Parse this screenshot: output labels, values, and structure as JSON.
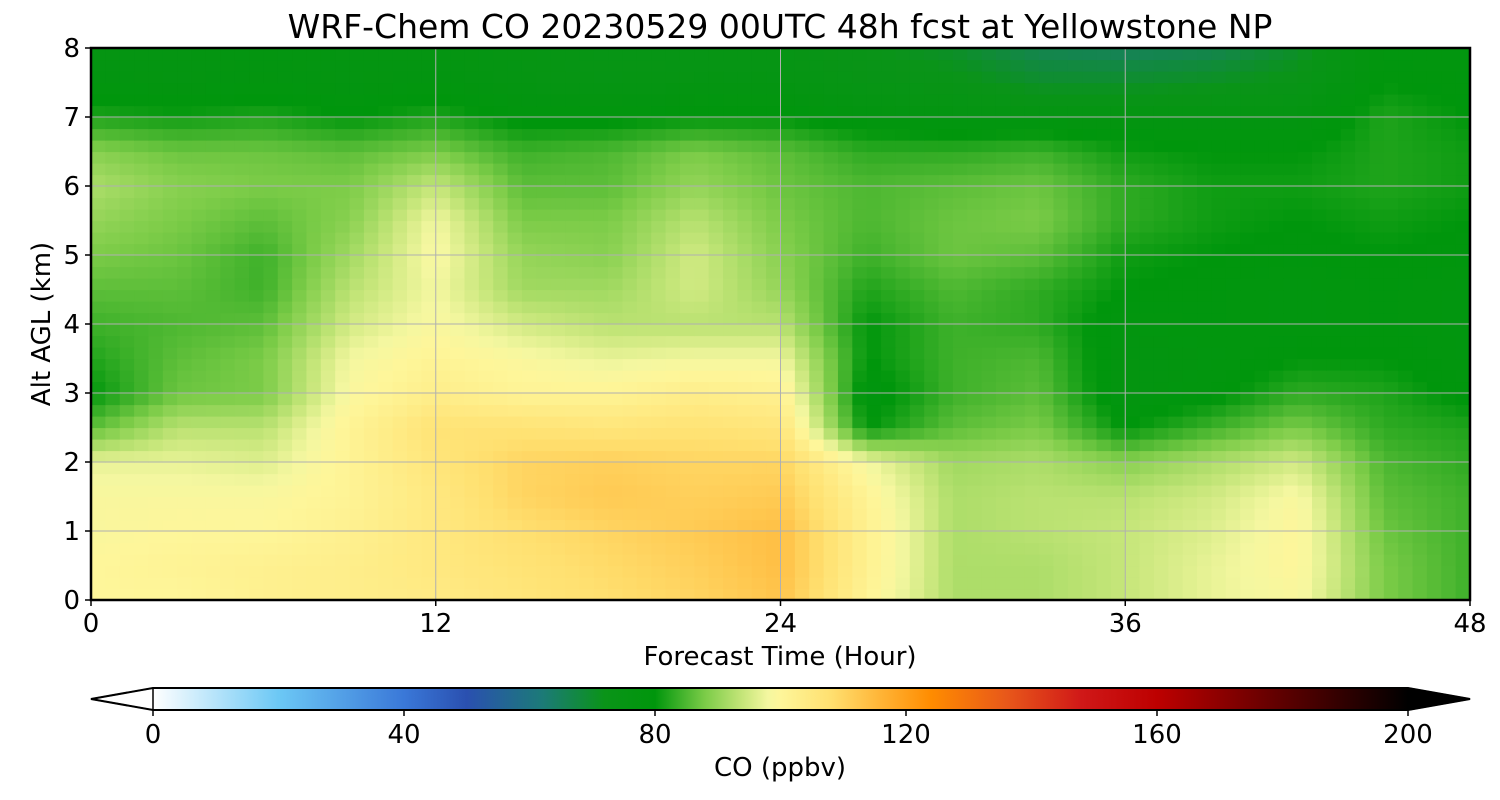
{
  "chart_data": {
    "type": "heatmap",
    "title": "WRF-Chem CO  20230529 00UTC 48h fcst at Yellowstone NP",
    "xlabel": "Forecast Time (Hour)",
    "ylabel": "Alt AGL (km)",
    "xlim": [
      0,
      48
    ],
    "ylim": [
      0,
      8
    ],
    "x_ticks": [
      0,
      12,
      24,
      36,
      48
    ],
    "x_tick_labels": [
      "0",
      "12",
      "24",
      "36",
      "48"
    ],
    "y_ticks": [
      0,
      1,
      2,
      3,
      4,
      5,
      6,
      7,
      8
    ],
    "y_tick_labels": [
      "0",
      "1",
      "2",
      "3",
      "4",
      "5",
      "6",
      "7",
      "8"
    ],
    "grid": true,
    "x": [
      0,
      3,
      6,
      9,
      12,
      15,
      18,
      21,
      24,
      27,
      30,
      33,
      36,
      39,
      42,
      45,
      48
    ],
    "y": [
      0,
      0.5,
      1,
      1.5,
      2,
      2.5,
      3,
      3.5,
      4,
      4.5,
      5,
      5.5,
      6,
      6.5,
      7,
      7.5,
      8
    ],
    "z_units": "ppbv",
    "z": [
      [
        100,
        100,
        102,
        103,
        104,
        106,
        108,
        110,
        113,
        101,
        92,
        92,
        94,
        97,
        99,
        88,
        84
      ],
      [
        100,
        101,
        102,
        103,
        105,
        107,
        109,
        111,
        114,
        102,
        92,
        92,
        94,
        97,
        100,
        88,
        84
      ],
      [
        99,
        100,
        100,
        102,
        105,
        108,
        110,
        112,
        114,
        102,
        92,
        93,
        94,
        96,
        100,
        87,
        84
      ],
      [
        99,
        99,
        99,
        101,
        105,
        110,
        112,
        111,
        112,
        101,
        92,
        93,
        93,
        95,
        99,
        86,
        84
      ],
      [
        97,
        97,
        96,
        101,
        106,
        110,
        111,
        110,
        110,
        98,
        91,
        92,
        89,
        92,
        95,
        85,
        83
      ],
      [
        86,
        93,
        93,
        101,
        107,
        107,
        106,
        107,
        106,
        80,
        86,
        88,
        80,
        84,
        88,
        83,
        82
      ],
      [
        80,
        87,
        88,
        99,
        103,
        101,
        101,
        103,
        102,
        78,
        84,
        86,
        77,
        79,
        83,
        82,
        79
      ],
      [
        82,
        86,
        88,
        98,
        101,
        99,
        97,
        98,
        98,
        80,
        84,
        85,
        77,
        78,
        80,
        80,
        78
      ],
      [
        84,
        85,
        86,
        95,
        99,
        95,
        93,
        93,
        93,
        80,
        84,
        83,
        78,
        79,
        78,
        79,
        78
      ],
      [
        86,
        86,
        84,
        93,
        98,
        91,
        91,
        95,
        90,
        82,
        85,
        83,
        80,
        79,
        78,
        79,
        78
      ],
      [
        88,
        87,
        84,
        91,
        99,
        90,
        89,
        95,
        89,
        84,
        87,
        86,
        81,
        80,
        79,
        80,
        79
      ],
      [
        90,
        88,
        86,
        89,
        98,
        88,
        88,
        93,
        88,
        85,
        87,
        88,
        83,
        81,
        80,
        81,
        80
      ],
      [
        92,
        89,
        88,
        88,
        94,
        86,
        86,
        90,
        87,
        85,
        86,
        87,
        83,
        81,
        81,
        82,
        81
      ],
      [
        89,
        87,
        87,
        86,
        88,
        84,
        85,
        88,
        86,
        83,
        83,
        84,
        81,
        80,
        80,
        82,
        81
      ],
      [
        82,
        81,
        82,
        80,
        82,
        79,
        79,
        80,
        80,
        78,
        77,
        77,
        77,
        77,
        77,
        82,
        80
      ],
      [
        78,
        77,
        78,
        77,
        78,
        76,
        75,
        76,
        76,
        74,
        73,
        70,
        70,
        71,
        73,
        80,
        79
      ],
      [
        76,
        76,
        77,
        76,
        76,
        75,
        74,
        74,
        74,
        72,
        70,
        66,
        65,
        66,
        70,
        78,
        78
      ]
    ],
    "colorbar": {
      "label": "CO  (ppbv)",
      "min": 0,
      "max": 200,
      "extend": "both",
      "ticks": [
        0,
        40,
        80,
        120,
        160,
        200
      ],
      "tick_labels": [
        "0",
        "40",
        "80",
        "120",
        "160",
        "200"
      ],
      "color_stops": [
        [
          0,
          "#ffffff"
        ],
        [
          20,
          "#6cc8f5"
        ],
        [
          40,
          "#3a78d8"
        ],
        [
          50,
          "#2a50b0"
        ],
        [
          62,
          "#1c7a78"
        ],
        [
          72,
          "#0a9418"
        ],
        [
          80,
          "#00960c"
        ],
        [
          88,
          "#7ccc48"
        ],
        [
          94,
          "#c6e67a"
        ],
        [
          98,
          "#f4f7a0"
        ],
        [
          100,
          "#fef69a"
        ],
        [
          108,
          "#ffe070"
        ],
        [
          116,
          "#ffb436"
        ],
        [
          124,
          "#ff8c00"
        ],
        [
          136,
          "#e8581a"
        ],
        [
          148,
          "#d01818"
        ],
        [
          160,
          "#bd0000"
        ],
        [
          176,
          "#700000"
        ],
        [
          200,
          "#000000"
        ]
      ]
    }
  }
}
